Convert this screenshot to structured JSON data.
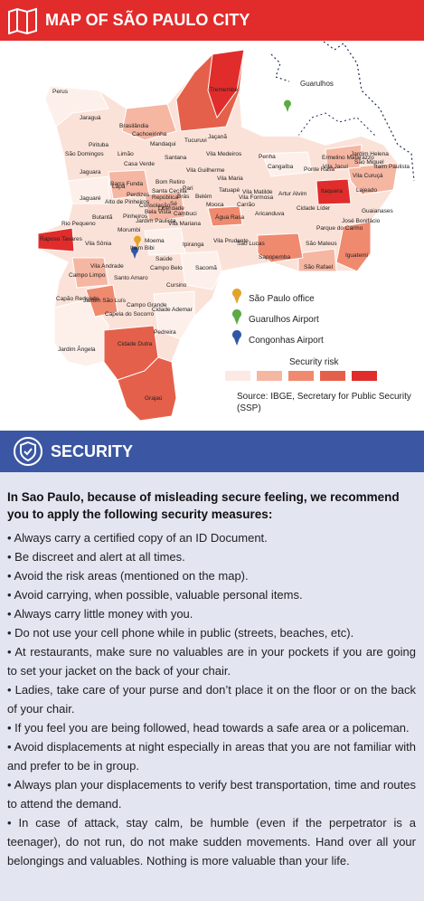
{
  "header": {
    "title": "MAP OF SÃO PAULO CITY"
  },
  "map": {
    "neighbor": "Guarulhos",
    "districts": [
      "Perus",
      "Tremembé",
      "Jaraguá",
      "Brasilândia",
      "Cachoeirinha",
      "Jaçanã",
      "Tucuruvi",
      "Mandaqui",
      "Pirituba",
      "São Domingos",
      "Santana",
      "Vila Medeiros",
      "Casa Verde",
      "Limão",
      "Vila Guilherme",
      "Jardim Helena",
      "Ermelino Matarazzo",
      "São Miguel",
      "Vila Jacuí",
      "Itaim Paulista",
      "Penha",
      "Cangaíba",
      "Ponte Rasa",
      "Vila Curuçá",
      "Jaguara",
      "Barra Funda",
      "Bom Retiro",
      "Pari",
      "Belém",
      "Vila Maria",
      "Lapa",
      "Perdizes",
      "Santa Cecília",
      "República",
      "Sé",
      "Brás",
      "Vila Matilde",
      "Artur Alvim",
      "Itaquera",
      "Lajeado",
      "Tatuapé",
      "Carrão",
      "Jaguaré",
      "Alto de Pinheiros",
      "Butantã",
      "Pinheiros",
      "Consolação",
      "Bela Vista",
      "Liberdade",
      "Mooca",
      "Cambuci",
      "Aricanduva",
      "Cidade Líder",
      "Vila Formosa",
      "Guaianases",
      "José Bonifácio",
      "Parque do Carmo",
      "Água Rasa",
      "Jardim Paulista",
      "Rio Pequeno",
      "Raposo Tavares",
      "Vila Sônia",
      "Morumbi",
      "Itaim Bibi",
      "Moema",
      "Vila Mariana",
      "Ipiranga",
      "Vila Prudente",
      "São Lucas",
      "Sapopemba",
      "São Mateus",
      "Iguatemi",
      "São Rafael",
      "Saúde",
      "Campo Belo",
      "Vila Andrade",
      "Campo Limpo",
      "Santo Amaro",
      "Sacomã",
      "Cursino",
      "Capão Redondo",
      "Jardim São Luís",
      "Campo Grande",
      "Cidade Ademar",
      "Capela do Socorro",
      "Pedreira",
      "Jardim Ângela",
      "Cidade Dutra",
      "Grajaú"
    ],
    "legend": {
      "items": [
        "São Paulo office",
        "Guarulhos Airport",
        "Congonhas Airport"
      ],
      "risk_title": "Security risk"
    },
    "source": "Source: IBGE, Secretary for Public Security (SSP)"
  },
  "security": {
    "title": "SECURITY",
    "intro": "In Sao Paulo, because of misleading secure feeling, we recommend you to apply the following security measures:",
    "bullets": [
      "• Always carry a certified copy of an ID Document.",
      "• Be discreet and alert at all times.",
      "• Avoid the risk areas (mentioned on the map).",
      "• Avoid carrying, when possible, valuable personal items.",
      "• Always carry little money with you.",
      "• Do not use your cell phone while in public (streets, beaches, etc).",
      "• At restaurants, make sure no valuables are in your pockets if you are going to set your jacket on the back of your chair.",
      "• Ladies, take care of your purse and don’t place it on the floor or on the back of your chair.",
      "• If you feel you are being followed, head towards a safe area or a policeman.",
      "• Avoid displacements at night especially in areas that you are not familiar with and prefer to be in group.",
      "• Always plan your displacements to verify best transportation, time and routes to attend the demand.",
      "• In case of attack, stay calm, be humble (even if the perpetrator is a teenager), do not run, do not make sudden movements. Hand over all your belongings and valuables. Nothing is more valuable than your life."
    ]
  }
}
